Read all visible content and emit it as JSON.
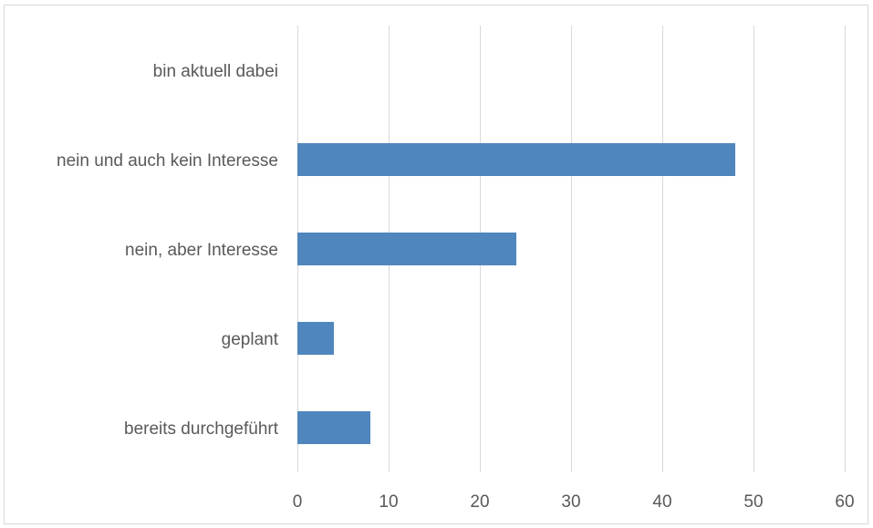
{
  "chart_data": {
    "type": "bar",
    "orientation": "horizontal",
    "title": "",
    "xlabel": "",
    "ylabel": "",
    "categories": [
      "bin aktuell dabei",
      "nein und auch kein Interesse",
      "nein, aber Interesse",
      "geplant",
      "bereits durchgeführt"
    ],
    "values": [
      0,
      48,
      24,
      4,
      8
    ],
    "xlim": [
      0,
      60
    ],
    "xticks": [
      0,
      10,
      20,
      30,
      40,
      50,
      60
    ],
    "xtick_labels": [
      "0",
      "10",
      "20",
      "30",
      "40",
      "50",
      "60"
    ],
    "grid": "vertical",
    "legend": "none",
    "bar_color": "#4f86bd",
    "grid_color": "#d9d9d9"
  }
}
